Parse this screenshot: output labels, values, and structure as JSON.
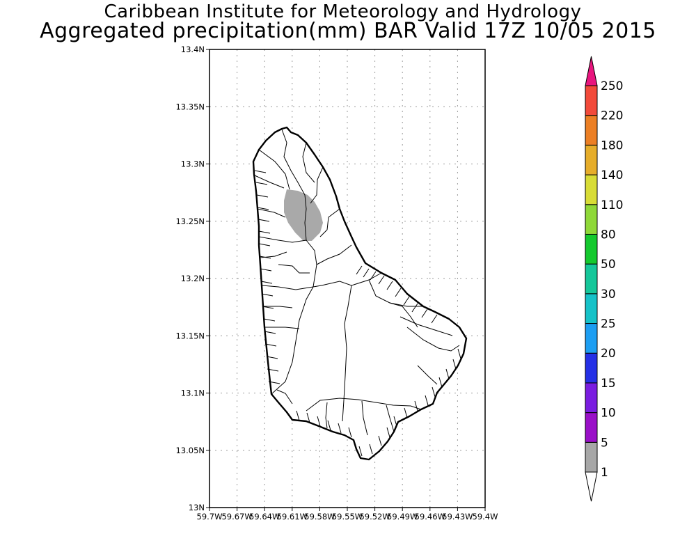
{
  "titles": {
    "line1": "Caribbean Institute for Meteorology and Hydrology",
    "line2": "Aggregated precipitation(mm) BAR Valid 17Z 10/05 2015"
  },
  "map": {
    "lon_range": [
      -59.7,
      -59.4
    ],
    "lat_range": [
      13.0,
      13.4
    ],
    "grid": true,
    "lat_ticks": [
      "13.4N",
      "13.35N",
      "13.3N",
      "13.25N",
      "13.2N",
      "13.15N",
      "13.1N",
      "13.05N",
      "13N"
    ],
    "lon_ticks": [
      "59.7W",
      "59.67W",
      "59.64W",
      "59.61W",
      "59.58W",
      "59.55W",
      "59.52W",
      "59.49W",
      "59.46W",
      "59.43W",
      "59.4W"
    ],
    "region": "Barbados",
    "precip_area": {
      "category": "1-5 mm",
      "color": "#a9a9a9"
    }
  },
  "colorbar": {
    "labels": [
      "1",
      "5",
      "10",
      "15",
      "20",
      "25",
      "30",
      "50",
      "80",
      "110",
      "140",
      "180",
      "220",
      "250"
    ],
    "colors": [
      "#a7a7a7",
      "#9a10c8",
      "#7a1de0",
      "#2530e6",
      "#1d9ef2",
      "#16c2c8",
      "#15c79a",
      "#14c92e",
      "#8fd838",
      "#d8dc36",
      "#e6ad2a",
      "#ec7f24",
      "#f24a3a",
      "#e8157e"
    ]
  }
}
